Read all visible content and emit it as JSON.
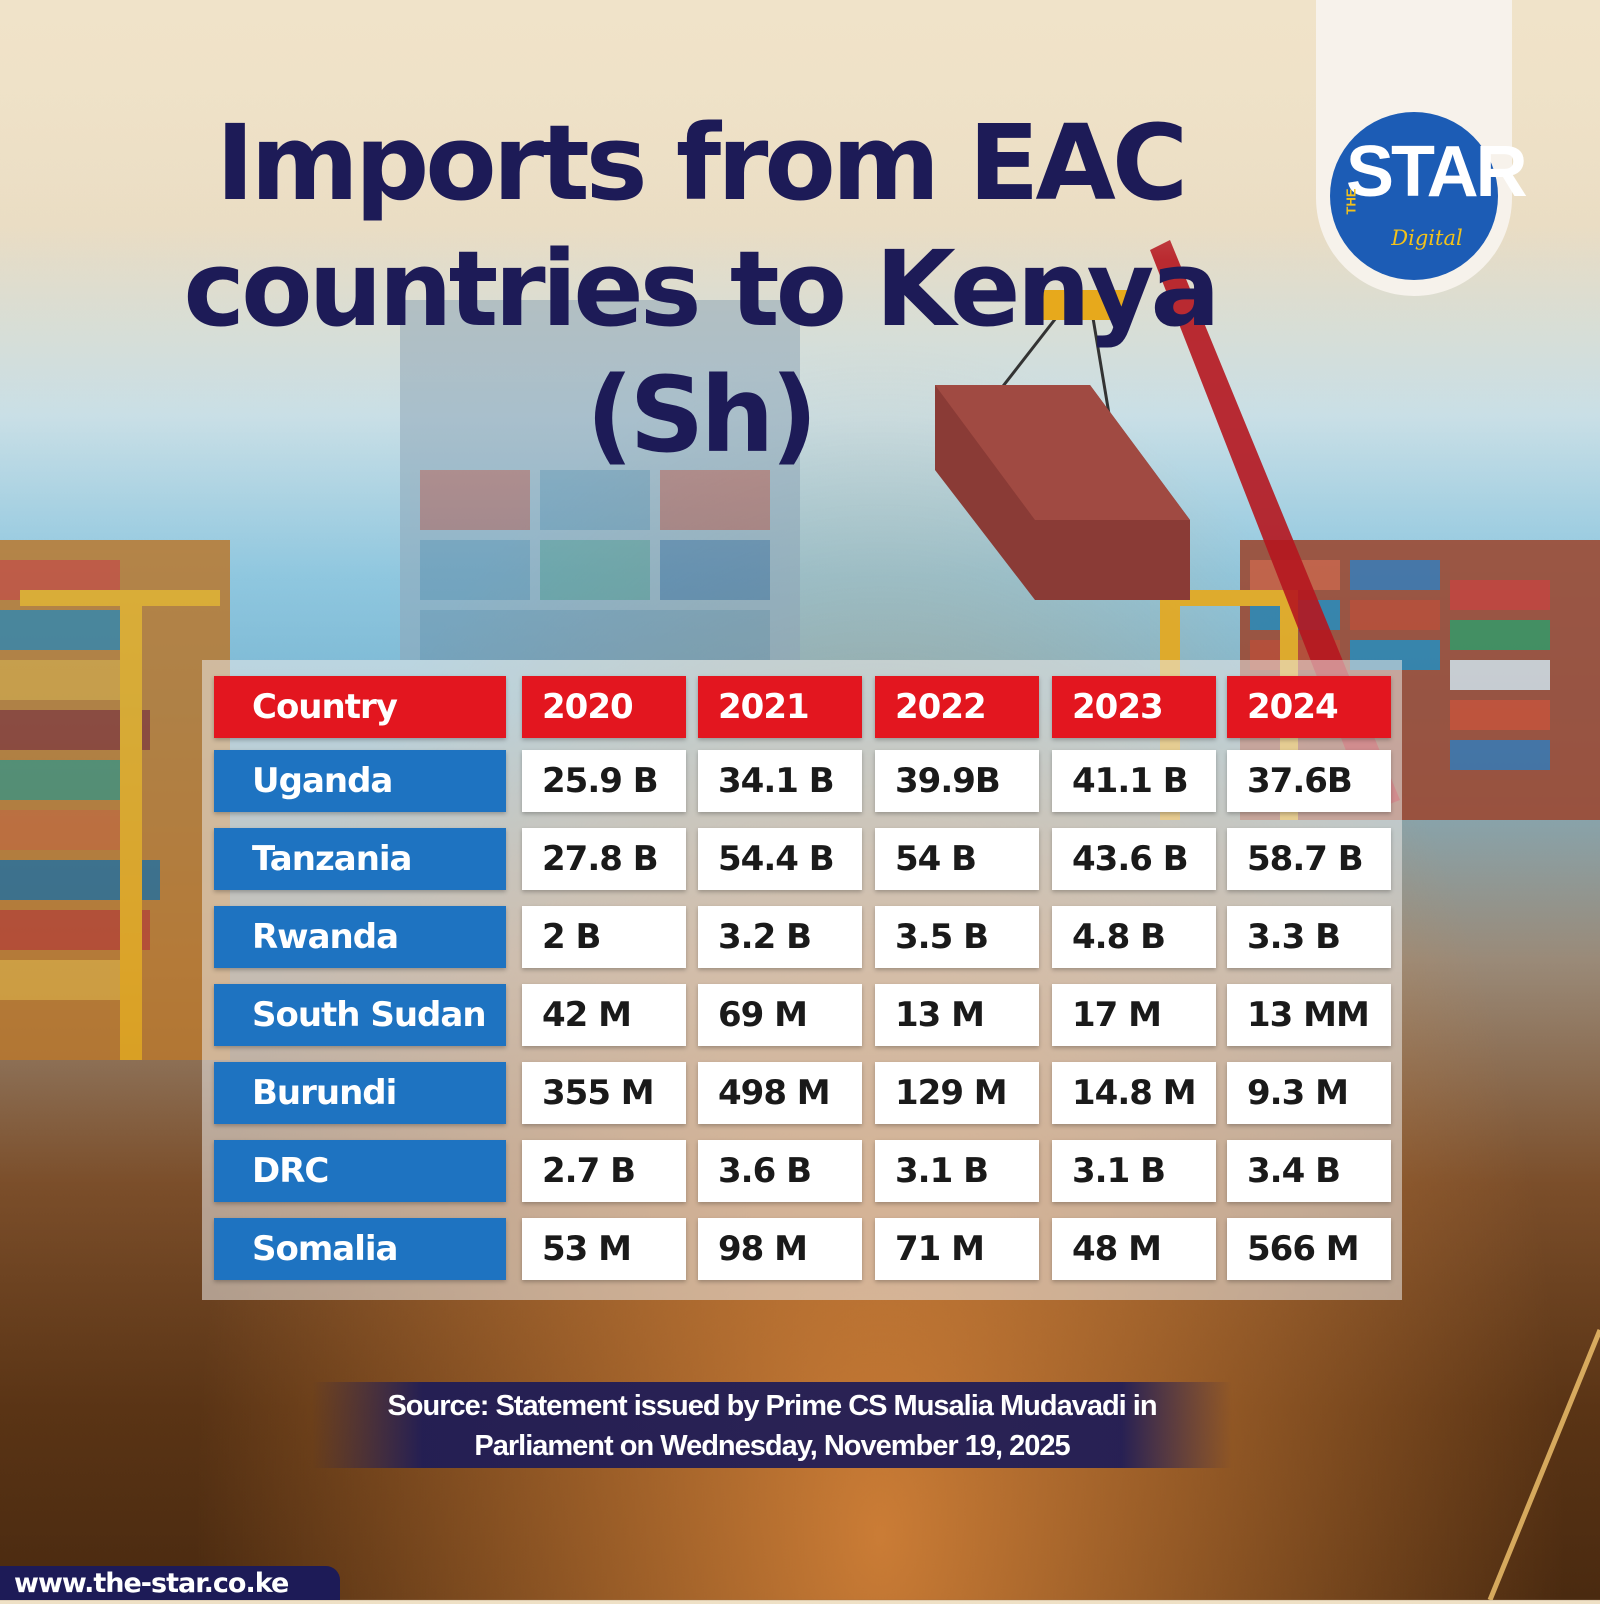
{
  "title": "Imports from EAC countries to Kenya (Sh)",
  "title_lines": [
    "Imports from EAC",
    "countries to Kenya",
    "(Sh)"
  ],
  "brand": {
    "the": "THE",
    "name": "STAR",
    "sub": "Digital"
  },
  "source": {
    "line1": "Source: Statement issued by Prime CS Musalia Mudavadi in",
    "line2": "Parliament on Wednesday, November 19, 2025"
  },
  "url": "www.the-star.co.ke",
  "colors": {
    "title": "#1d1b57",
    "header": "#e3161f",
    "country": "#1e73c1",
    "brand": "#1c5cb5"
  },
  "chart_data": {
    "type": "table",
    "title": "Imports from EAC countries to Kenya (Sh)",
    "header_label": "Country",
    "columns": [
      "2020",
      "2021",
      "2022",
      "2023",
      "2024"
    ],
    "rows": [
      {
        "country": "Uganda",
        "values": [
          "25.9 B",
          "34.1 B",
          "39.9B",
          "41.1 B",
          "37.6B"
        ]
      },
      {
        "country": "Tanzania",
        "values": [
          "27.8 B",
          "54.4 B",
          "54 B",
          "43.6 B",
          "58.7 B"
        ]
      },
      {
        "country": "Rwanda",
        "values": [
          "2 B",
          "3.2 B",
          "3.5 B",
          "4.8 B",
          "3.3 B"
        ]
      },
      {
        "country": "South Sudan",
        "values": [
          "42 M",
          "69 M",
          "13 M",
          "17 M",
          "13 MM"
        ]
      },
      {
        "country": "Burundi",
        "values": [
          "355 M",
          "498 M",
          "129 M",
          "14.8 M",
          "9.3 M"
        ]
      },
      {
        "country": "DRC",
        "values": [
          "2.7 B",
          "3.6 B",
          "3.1 B",
          "3.1 B",
          "3.4 B"
        ]
      },
      {
        "country": "Somalia",
        "values": [
          "53 M",
          "98 M",
          "71 M",
          "48 M",
          "566 M"
        ]
      }
    ]
  }
}
